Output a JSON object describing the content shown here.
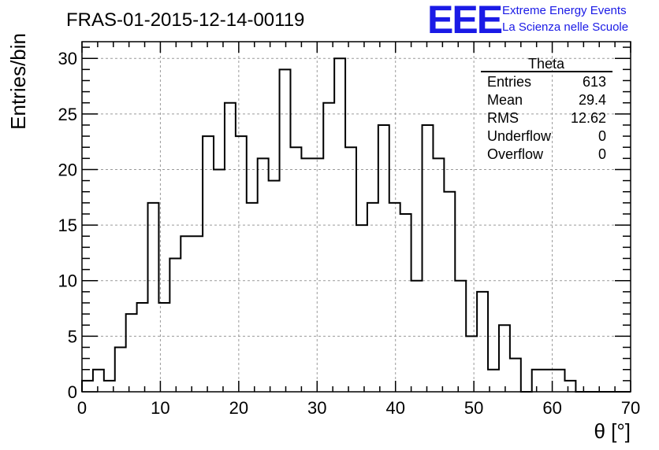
{
  "chart_data": {
    "type": "bar",
    "title": "FRAS-01-2015-12-14-00119",
    "xlabel": "θ [°]",
    "ylabel": "Entries/bin",
    "xlim": [
      0,
      70
    ],
    "ylim": [
      0,
      31.5
    ],
    "xticks": [
      0,
      10,
      20,
      30,
      40,
      50,
      60,
      70
    ],
    "yticks": [
      0,
      5,
      10,
      15,
      20,
      25,
      30
    ],
    "grid": true,
    "bin_width": 1.4,
    "values": [
      1,
      2,
      1,
      4,
      7,
      8,
      17,
      8,
      12,
      14,
      14,
      23,
      20,
      26,
      23,
      17,
      21,
      19,
      29,
      22,
      21,
      21,
      26,
      30,
      22,
      15,
      17,
      24,
      17,
      16,
      10,
      24,
      21,
      18,
      10,
      5,
      9,
      2,
      6,
      3,
      0,
      2,
      2,
      2,
      1,
      0,
      0,
      0,
      0,
      0
    ]
  },
  "stats": {
    "name": "Theta",
    "rows": [
      {
        "label": "Entries",
        "value": "613"
      },
      {
        "label": "Mean",
        "value": "29.4"
      },
      {
        "label": "RMS",
        "value": "12.62"
      },
      {
        "label": "Underflow",
        "value": "0"
      },
      {
        "label": "Overflow",
        "value": "0"
      }
    ]
  },
  "branding": {
    "logo": "EEE",
    "line1": "Extreme Energy Events",
    "line2": "La Scienza nelle Scuole"
  },
  "colors": {
    "histogram": "#000000",
    "grid": "#9a9a9a",
    "brand": "#1a1ae6"
  }
}
